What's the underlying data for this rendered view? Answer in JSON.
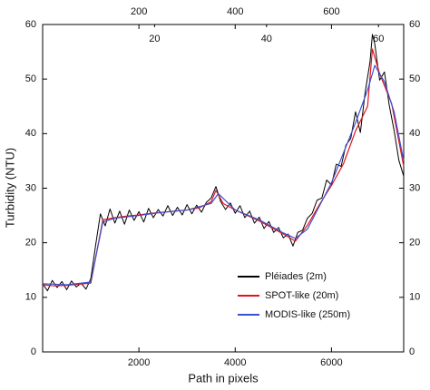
{
  "chart_data": {
    "type": "line",
    "xlabel": "Path in pixels",
    "ylabel": "Turbidity (NTU)",
    "xlim": [
      0,
      7500
    ],
    "xticks": [
      2000,
      4000,
      6000
    ],
    "x2lim": [
      0,
      750
    ],
    "x2ticks": [
      200,
      400,
      600
    ],
    "x3lim": [
      0,
      64.5
    ],
    "x3ticks": [
      20,
      40,
      60
    ],
    "ylim": [
      0,
      60
    ],
    "yticks": [
      0,
      10,
      20,
      30,
      40,
      50,
      60
    ],
    "y2lim": [
      0,
      60
    ],
    "y2ticks": [
      0,
      10,
      20,
      30,
      40,
      50,
      60
    ],
    "legend": "lower right",
    "grid": false,
    "series": [
      {
        "name": "Pléiades (2m)",
        "color": "#000000",
        "x": [
          0,
          100,
          200,
          300,
          400,
          500,
          600,
          700,
          800,
          900,
          1000,
          1100,
          1200,
          1300,
          1400,
          1500,
          1600,
          1700,
          1800,
          1900,
          2000,
          2100,
          2200,
          2300,
          2400,
          2500,
          2600,
          2700,
          2800,
          2900,
          3000,
          3100,
          3200,
          3300,
          3400,
          3500,
          3600,
          3700,
          3800,
          3900,
          4000,
          4100,
          4200,
          4300,
          4400,
          4500,
          4600,
          4700,
          4800,
          4900,
          5000,
          5100,
          5200,
          5300,
          5400,
          5500,
          5600,
          5700,
          5800,
          5900,
          6000,
          6100,
          6200,
          6300,
          6400,
          6500,
          6600,
          6700,
          6800,
          6850,
          6900,
          7000,
          7100,
          7200,
          7300,
          7400,
          7500
        ],
        "values": [
          12.5,
          11.2,
          13.1,
          11.8,
          12.9,
          11.4,
          13.0,
          11.9,
          12.6,
          11.5,
          13.4,
          19.5,
          25.3,
          23.1,
          26.2,
          23.6,
          25.8,
          23.4,
          26.0,
          24.1,
          25.7,
          23.8,
          26.3,
          24.6,
          26.1,
          24.9,
          26.8,
          25.0,
          26.5,
          25.1,
          27.0,
          25.3,
          26.9,
          25.6,
          27.4,
          28.2,
          30.3,
          27.5,
          26.1,
          27.3,
          25.4,
          26.8,
          24.6,
          25.8,
          23.6,
          24.7,
          22.6,
          23.9,
          21.9,
          22.8,
          20.9,
          21.6,
          19.4,
          21.9,
          22.3,
          24.5,
          25.4,
          27.8,
          28.2,
          31.5,
          30.6,
          34.4,
          34.0,
          37.9,
          39.1,
          44.0,
          40.2,
          47.6,
          53.1,
          58.2,
          56.4,
          49.8,
          51.3,
          45.2,
          40.6,
          35.1,
          32.2
        ]
      },
      {
        "name": "SPOT-like (20m)",
        "color": "#e0141e",
        "x": [
          0,
          250,
          500,
          750,
          1000,
          1250,
          1500,
          1750,
          2000,
          2250,
          2500,
          2750,
          3000,
          3250,
          3500,
          3600,
          3750,
          4000,
          4250,
          4500,
          4750,
          5000,
          5250,
          5500,
          5750,
          6000,
          6250,
          6500,
          6750,
          6850,
          7000,
          7250,
          7500
        ],
        "values": [
          12.3,
          12.1,
          12.2,
          12.4,
          12.6,
          24.2,
          24.6,
          24.9,
          25.1,
          25.4,
          25.6,
          25.8,
          26.0,
          26.4,
          27.5,
          29.6,
          27.2,
          26.0,
          25.0,
          24.0,
          22.8,
          21.6,
          20.3,
          23.2,
          27.0,
          30.5,
          34.5,
          40.5,
          45.0,
          55.5,
          51.0,
          45.5,
          34.0
        ]
      },
      {
        "name": "MODIS-like (250m)",
        "color": "#3a4fd0",
        "x": [
          0,
          500,
          1000,
          1250,
          1500,
          2000,
          2500,
          3000,
          3500,
          3650,
          4000,
          4500,
          5000,
          5250,
          5500,
          6000,
          6500,
          6750,
          6900,
          7100,
          7300,
          7500
        ],
        "values": [
          12.5,
          12.3,
          12.8,
          23.8,
          24.5,
          25.0,
          25.6,
          26.0,
          27.2,
          29.0,
          26.0,
          24.2,
          21.8,
          20.8,
          22.5,
          31.0,
          42.0,
          48.0,
          52.5,
          49.5,
          44.0,
          35.0
        ]
      }
    ]
  }
}
